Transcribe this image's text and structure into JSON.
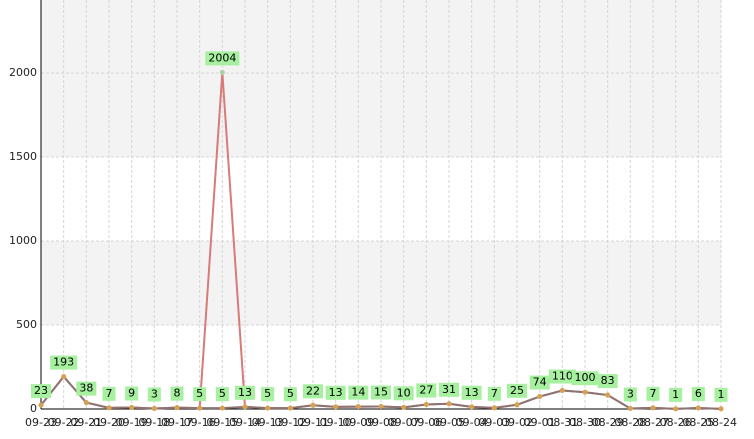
{
  "chart_data": {
    "type": "line",
    "categories": [
      "09-23",
      "09-22",
      "09-21",
      "09-20",
      "09-19",
      "09-18",
      "09-17",
      "09-16",
      "09-15",
      "09-14",
      "09-13",
      "09-12",
      "09-11",
      "09-10",
      "09-09",
      "09-08",
      "09-07",
      "09-06",
      "09-05",
      "09-04",
      "09-03",
      "09-02",
      "09-01",
      "08-31",
      "08-30",
      "08-29",
      "08-28",
      "08-27",
      "08-26",
      "08-25",
      "08-24"
    ],
    "series": [
      {
        "color": "#d77a78",
        "values": [
          23,
          193,
          38,
          7,
          9,
          3,
          8,
          5,
          2004,
          13,
          5,
          5,
          22,
          13,
          14,
          15,
          10,
          27,
          31,
          13,
          7,
          25,
          74,
          110,
          100,
          83,
          3,
          7,
          1,
          6,
          1
        ]
      },
      {
        "color": "#8c7474",
        "values": [
          23,
          193,
          38,
          7,
          9,
          3,
          8,
          5,
          5,
          13,
          5,
          5,
          22,
          13,
          14,
          15,
          10,
          27,
          31,
          13,
          7,
          25,
          74,
          110,
          100,
          83,
          3,
          7,
          1,
          6,
          1
        ]
      }
    ],
    "ylim": [
      0,
      2435
    ],
    "yticks": [
      0,
      500,
      1000,
      1500,
      2000
    ],
    "grid": true
  }
}
